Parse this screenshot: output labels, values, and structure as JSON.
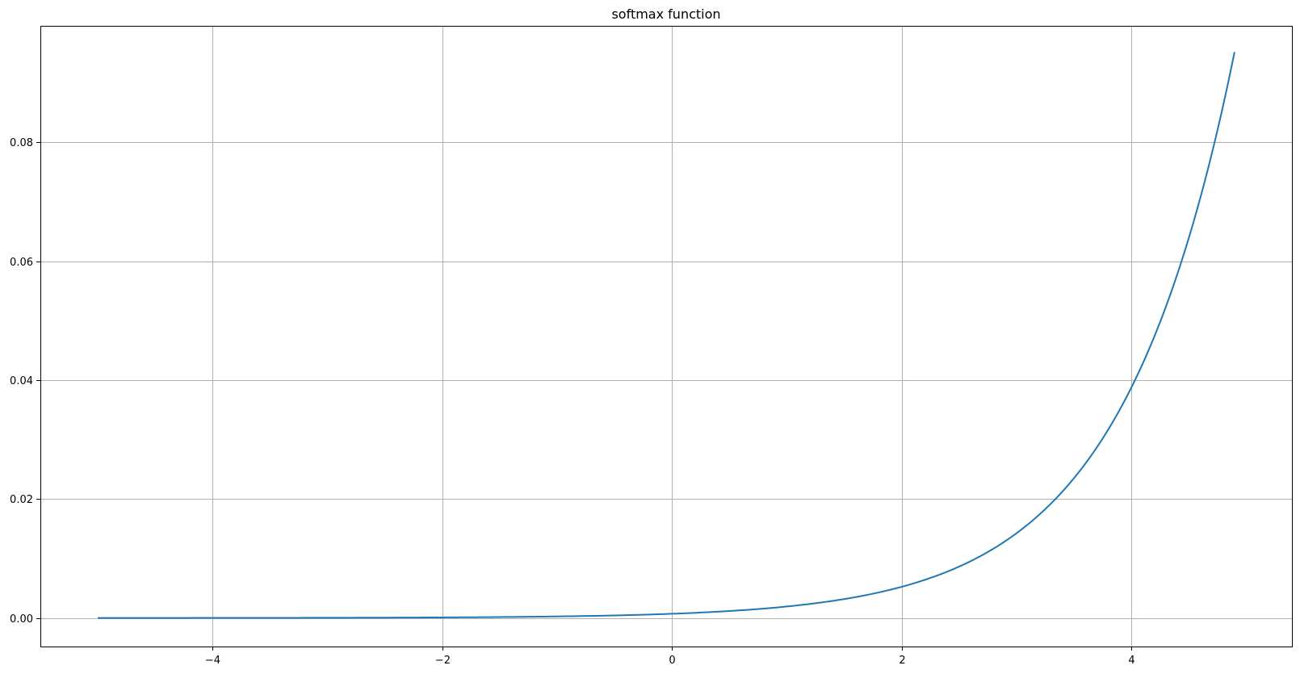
{
  "chart_data": {
    "type": "line",
    "title": "softmax function",
    "xlabel": "",
    "ylabel": "",
    "xlim": [
      -5.5,
      5.4
    ],
    "ylim": [
      -0.0048,
      0.0996
    ],
    "grid": true,
    "legend": "none",
    "x_ticks": [
      -4,
      -2,
      0,
      2,
      4
    ],
    "x_tick_labels": [
      "−4",
      "−2",
      "0",
      "2",
      "4"
    ],
    "y_ticks": [
      0.0,
      0.02,
      0.04,
      0.06,
      0.08
    ],
    "y_tick_labels": [
      "0.00",
      "0.02",
      "0.04",
      "0.06",
      "0.08"
    ],
    "series": [
      {
        "color": "#1f77b4",
        "x": [
          -5.0,
          -4.5,
          -4.0,
          -3.5,
          -3.0,
          -2.5,
          -2.0,
          -1.5,
          -1.0,
          -0.5,
          0.0,
          0.5,
          1.0,
          1.5,
          2.0,
          2.5,
          3.0,
          3.5,
          4.0,
          4.2,
          4.4,
          4.6,
          4.8,
          4.9
        ],
        "y": [
          4.8e-06,
          7.9e-06,
          1.3e-05,
          2.14e-05,
          3.53e-05,
          5.82e-05,
          9.59e-05,
          0.000158,
          0.000261,
          0.00043,
          0.000709,
          0.00117,
          0.00193,
          0.00318,
          0.00524,
          0.00863,
          0.01423,
          0.02347,
          0.0387,
          0.04727,
          0.05773,
          0.07051,
          0.08612,
          0.0952
        ]
      }
    ]
  }
}
